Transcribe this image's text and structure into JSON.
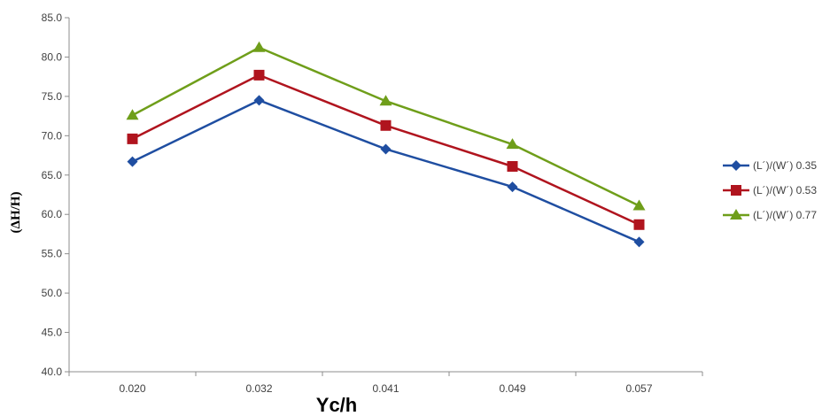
{
  "chart_data": {
    "type": "line",
    "title": "",
    "xlabel": "Yc/h",
    "ylabel": "(ΔH/H)",
    "categories": [
      "0.020",
      "0.032",
      "0.041",
      "0.049",
      "0.057"
    ],
    "ylim": [
      40.0,
      85.0
    ],
    "yticks": [
      "40.0",
      "45.0",
      "50.0",
      "55.0",
      "60.0",
      "65.0",
      "70.0",
      "75.0",
      "80.0",
      "85.0"
    ],
    "grid": false,
    "legend_position": "right",
    "series": [
      {
        "name": "(L´)/(W´) 0.35",
        "marker": "diamond",
        "color": "#1f4ea1",
        "values": [
          66.7,
          74.5,
          68.3,
          63.5,
          56.5
        ]
      },
      {
        "name": "(L´)/(W´) 0.53",
        "marker": "square",
        "color": "#b0141e",
        "values": [
          69.6,
          77.7,
          71.3,
          66.1,
          58.7
        ]
      },
      {
        "name": "(L´)/(W´) 0.77",
        "marker": "triangle",
        "color": "#6f9e1a",
        "values": [
          72.6,
          81.2,
          74.4,
          68.9,
          61.1
        ]
      }
    ]
  }
}
